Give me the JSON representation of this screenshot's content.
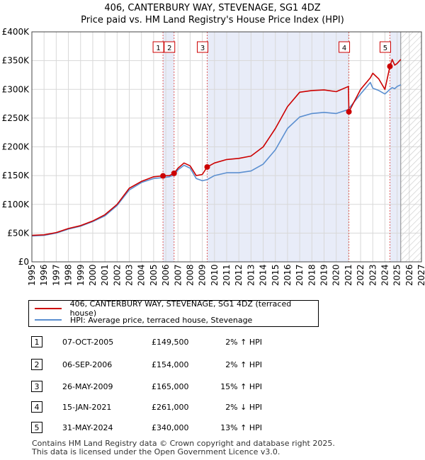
{
  "header": {
    "title_line1": "406, CANTERBURY WAY, STEVENAGE, SG1 4DZ",
    "title_line2": "Price paid vs. HM Land Registry's House Price Index (HPI)"
  },
  "colors": {
    "property": "#cc0000",
    "hpi": "#5b8fd0",
    "shade": "#e8ecf8",
    "grid": "#d8d8d8"
  },
  "chart_data": {
    "type": "line",
    "x_range": [
      1995,
      2027
    ],
    "ylim": [
      0,
      400000
    ],
    "x_ticks": [
      1995,
      1996,
      1997,
      1998,
      1999,
      2000,
      2001,
      2002,
      2003,
      2004,
      2005,
      2006,
      2007,
      2008,
      2009,
      2010,
      2011,
      2012,
      2013,
      2014,
      2015,
      2016,
      2017,
      2018,
      2019,
      2020,
      2021,
      2022,
      2023,
      2024,
      2025,
      2026,
      2027
    ],
    "y_ticks": [
      {
        "value": 0,
        "label": "£0"
      },
      {
        "value": 50000,
        "label": "£50K"
      },
      {
        "value": 100000,
        "label": "£100K"
      },
      {
        "value": 150000,
        "label": "£150K"
      },
      {
        "value": 200000,
        "label": "£200K"
      },
      {
        "value": 250000,
        "label": "£250K"
      },
      {
        "value": 300000,
        "label": "£300K"
      },
      {
        "value": 350000,
        "label": "£350K"
      },
      {
        "value": 400000,
        "label": "£400K"
      }
    ],
    "shaded_ranges": [
      [
        2005.77,
        2006.68
      ],
      [
        2009.4,
        2021.04
      ],
      [
        2024.41,
        2025.3
      ]
    ],
    "future_hatch_from": 2025.3,
    "series": [
      {
        "name": "406, CANTERBURY WAY, STEVENAGE, SG1 4DZ (terraced house)",
        "color": "#cc0000",
        "x": [
          1995,
          1996,
          1997,
          1998,
          1999,
          2000,
          2001,
          2002,
          2003,
          2004,
          2005,
          2005.77,
          2006.3,
          2006.68,
          2007,
          2007.5,
          2008,
          2008.5,
          2009,
          2009.4,
          2010,
          2011,
          2012,
          2013,
          2014,
          2015,
          2016,
          2017,
          2018,
          2019,
          2020,
          2021.0,
          2021.04,
          2022,
          2022.8,
          2023,
          2023.5,
          2024.0,
          2024.41,
          2024.6,
          2024.8,
          2025.0,
          2025.3
        ],
        "y": [
          46000,
          47000,
          51000,
          58000,
          63000,
          71000,
          82000,
          100000,
          128000,
          140000,
          148000,
          149500,
          150000,
          154000,
          163000,
          172000,
          167000,
          150000,
          152000,
          165000,
          172000,
          178000,
          180000,
          184000,
          200000,
          232000,
          270000,
          295000,
          298000,
          299000,
          296000,
          305000,
          261000,
          300000,
          320000,
          328000,
          318000,
          300000,
          340000,
          352000,
          342000,
          345000,
          352000
        ]
      },
      {
        "name": "HPI: Average price, terraced house, Stevenage",
        "color": "#5b8fd0",
        "x": [
          1995,
          1996,
          1997,
          1998,
          1999,
          2000,
          2001,
          2002,
          2003,
          2004,
          2005,
          2005.77,
          2006.3,
          2006.68,
          2007,
          2007.5,
          2008,
          2008.5,
          2009,
          2009.4,
          2010,
          2011,
          2012,
          2013,
          2014,
          2015,
          2016,
          2017,
          2018,
          2019,
          2020,
          2021.0,
          2021.04,
          2022,
          2022.8,
          2023,
          2023.5,
          2024.0,
          2024.41,
          2024.6,
          2024.8,
          2025.0,
          2025.3
        ],
        "y": [
          45000,
          46000,
          50000,
          57000,
          62000,
          70000,
          80000,
          98000,
          125000,
          138000,
          145000,
          146500,
          148000,
          151000,
          160000,
          168000,
          163000,
          145000,
          141000,
          143000,
          150000,
          155000,
          155000,
          158000,
          170000,
          195000,
          232000,
          252000,
          258000,
          260000,
          258000,
          265000,
          267000,
          292000,
          312000,
          302000,
          298000,
          292000,
          300000,
          303000,
          301000,
          305000,
          308000
        ]
      }
    ],
    "sales": [
      {
        "num": "1",
        "x": 2005.77,
        "y": 149500
      },
      {
        "num": "2",
        "x": 2006.68,
        "y": 154000
      },
      {
        "num": "3",
        "x": 2009.4,
        "y": 165000
      },
      {
        "num": "4",
        "x": 2021.04,
        "y": 261000
      },
      {
        "num": "5",
        "x": 2024.41,
        "y": 340000
      }
    ]
  },
  "legend": {
    "property": "406, CANTERBURY WAY, STEVENAGE, SG1 4DZ (terraced house)",
    "hpi": "HPI: Average price, terraced house, Stevenage"
  },
  "transactions": [
    {
      "num": "1",
      "date": "07-OCT-2005",
      "price": "£149,500",
      "hpi": "2% ↑ HPI"
    },
    {
      "num": "2",
      "date": "06-SEP-2006",
      "price": "£154,000",
      "hpi": "2% ↑ HPI"
    },
    {
      "num": "3",
      "date": "26-MAY-2009",
      "price": "£165,000",
      "hpi": "15% ↑ HPI"
    },
    {
      "num": "4",
      "date": "15-JAN-2021",
      "price": "£261,000",
      "hpi": "2% ↓ HPI"
    },
    {
      "num": "5",
      "date": "31-MAY-2024",
      "price": "£340,000",
      "hpi": "13% ↑ HPI"
    }
  ],
  "footer": {
    "line1": "Contains HM Land Registry data © Crown copyright and database right 2025.",
    "line2": "This data is licensed under the Open Government Licence v3.0."
  }
}
